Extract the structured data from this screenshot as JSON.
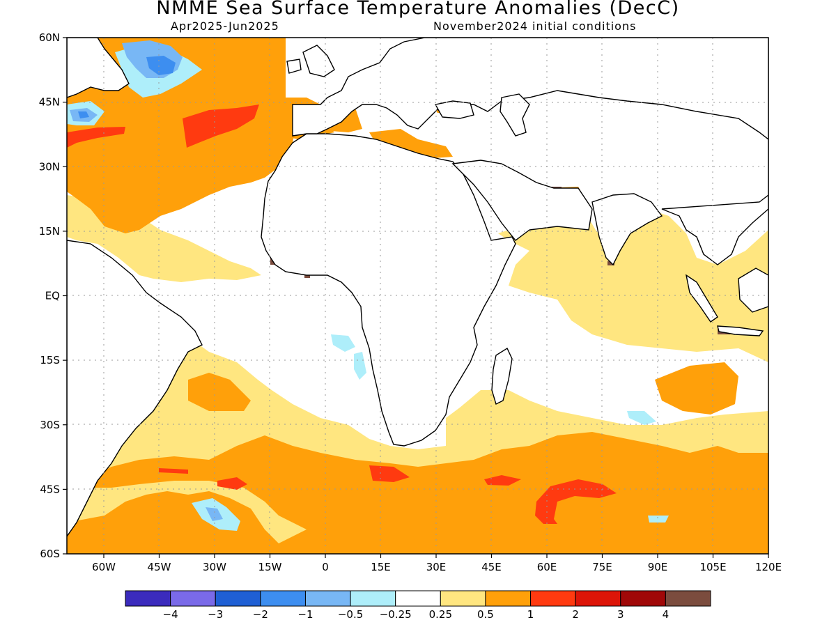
{
  "header": {
    "title": "NMME Sea Surface Temperature Anomalies (DecC)",
    "subtitle_left": "Apr2025-Jun2025",
    "subtitle_right": "November2024 initial conditions"
  },
  "map": {
    "lat_range": [
      -60,
      60
    ],
    "lon_range": [
      -70,
      120
    ],
    "lat_labels": [
      "60N",
      "45N",
      "30N",
      "15N",
      "EQ",
      "15S",
      "30S",
      "45S",
      "60S"
    ],
    "lat_values": [
      60,
      45,
      30,
      15,
      0,
      -15,
      -30,
      -45,
      -60
    ],
    "lon_labels": [
      "60W",
      "45W",
      "30W",
      "15W",
      "0",
      "15E",
      "30E",
      "45E",
      "60E",
      "75E",
      "90E",
      "105E",
      "120E"
    ],
    "lon_values": [
      -60,
      -45,
      -30,
      -15,
      0,
      15,
      30,
      45,
      60,
      75,
      90,
      105,
      120
    ],
    "grid": "dotted",
    "colors": {
      "land_outline": "#000000",
      "grid": "#9a9a9a"
    }
  },
  "legend": {
    "colors": [
      "#3b2bbd",
      "#7a6ae8",
      "#1f5fd4",
      "#3d8ef0",
      "#78b7f5",
      "#aeeefa",
      "#ffffff",
      "#ffe680",
      "#ffa00a",
      "#ff3a10",
      "#dd1508",
      "#a00808",
      "#7b4c3e"
    ],
    "labels": [
      "-4",
      "-3",
      "-2",
      "-1",
      "-0.5",
      "-0.25",
      "0.25",
      "0.5",
      "1",
      "2",
      "3",
      "4"
    ]
  }
}
